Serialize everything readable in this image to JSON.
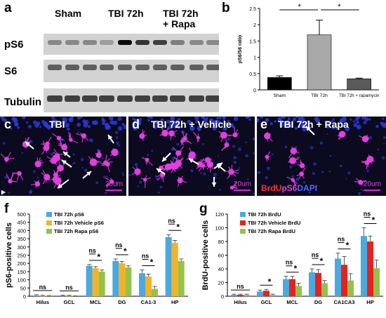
{
  "panels": {
    "a": "a",
    "b": "b",
    "c": "c",
    "d": "d",
    "e": "e",
    "f": "f",
    "g": "g"
  },
  "blot": {
    "groups": [
      "Sham",
      "TBI 72h",
      "TBI 72h\n+ Rapa"
    ],
    "rows": [
      "pS6",
      "S6",
      "Tubulin"
    ]
  },
  "micro": {
    "c": {
      "title": "TBI",
      "scale": "20um"
    },
    "d": {
      "title": "TBI 72h + Vehicle",
      "scale": "20um"
    },
    "e": {
      "title": "TBI 72h + Rapa",
      "scale": "20um",
      "stain_brdu": "BrdU",
      "stain_ps6": "pS6",
      "stain_dapi": "DAPI"
    }
  },
  "colors": {
    "magenta": "#e23ee0",
    "blue": "#2a3bd8",
    "blue_bar": "#4aa9dd",
    "orange_bar": "#f5b224",
    "green_bar": "#93c24a",
    "red_bar": "#e8211c",
    "black_bar": "#000000",
    "gray_bar": "#a9a9a9",
    "dgray_bar": "#5a5a5a"
  },
  "chart_data": [
    {
      "id": "b",
      "type": "bar",
      "ylabel": "pS6/S6 ratio",
      "categories": [
        "Sham",
        "TBI 72h",
        "TBI 72h + rapamycin"
      ],
      "values": [
        0.38,
        1.69,
        0.34
      ],
      "errors": [
        0.05,
        0.45,
        0.02
      ],
      "bar_colors": [
        "#000000",
        "#a9a9a9",
        "#5a5a5a"
      ],
      "ylim": [
        0,
        2.5
      ],
      "yticks": [
        "0",
        "0.5",
        "1",
        "1.5",
        "2",
        "2.5"
      ],
      "significance": [
        "*",
        "*"
      ]
    },
    {
      "id": "f",
      "type": "bar",
      "ylabel": "pS6-positive cells",
      "categories": [
        "Hilus",
        "GCL",
        "MCL",
        "DG",
        "CA1-3",
        "HP"
      ],
      "series": [
        {
          "name": "TBI 72h pS6",
          "values": [
            5,
            4,
            185,
            215,
            140,
            360
          ],
          "errors": [
            4,
            3,
            8,
            12,
            20,
            15
          ]
        },
        {
          "name": "TBI 72h Vehicle pS6",
          "values": [
            3,
            4,
            170,
            200,
            120,
            325
          ],
          "errors": [
            3,
            3,
            10,
            12,
            15,
            15
          ]
        },
        {
          "name": "TBI 72h Rapa pS6",
          "values": [
            2,
            1,
            150,
            175,
            45,
            215
          ],
          "errors": [
            2,
            1,
            10,
            10,
            15,
            12
          ]
        }
      ],
      "ylim": [
        0,
        500
      ],
      "yticks": [
        "0",
        "50",
        "100",
        "150",
        "200",
        "250",
        "300",
        "350",
        "400",
        "450",
        "500"
      ],
      "significance": [
        "ns",
        "ns",
        "*",
        "*",
        "*",
        "*"
      ]
    },
    {
      "id": "g",
      "type": "bar",
      "ylabel": "BrdU-positive cells",
      "categories": [
        "Hilus",
        "GCL",
        "MCL",
        "DG",
        "CA1CA3",
        "HP"
      ],
      "series": [
        {
          "name": "TBI 72h BrdU",
          "values": [
            2,
            7,
            25,
            35,
            55,
            88
          ],
          "errors": [
            1,
            2,
            4,
            5,
            8,
            12
          ]
        },
        {
          "name": "TBI 72h Vehicle BrdU",
          "values": [
            2,
            8,
            25,
            34,
            46,
            80
          ],
          "errors": [
            1,
            2,
            4,
            5,
            12,
            8
          ]
        },
        {
          "name": "TBI 72h Rapa BrdU",
          "values": [
            2,
            2,
            15,
            19,
            23,
            41
          ],
          "errors": [
            1,
            1,
            4,
            4,
            10,
            12
          ]
        }
      ],
      "ylim": [
        0,
        120
      ],
      "yticks": [
        "0",
        "20",
        "40",
        "60",
        "80",
        "100",
        "120"
      ],
      "significance": [
        "ns",
        "*",
        "*",
        "*",
        "*",
        "*"
      ],
      "ns_marks": [
        "ns",
        "",
        "ns",
        "ns",
        "ns",
        "ns"
      ]
    }
  ]
}
